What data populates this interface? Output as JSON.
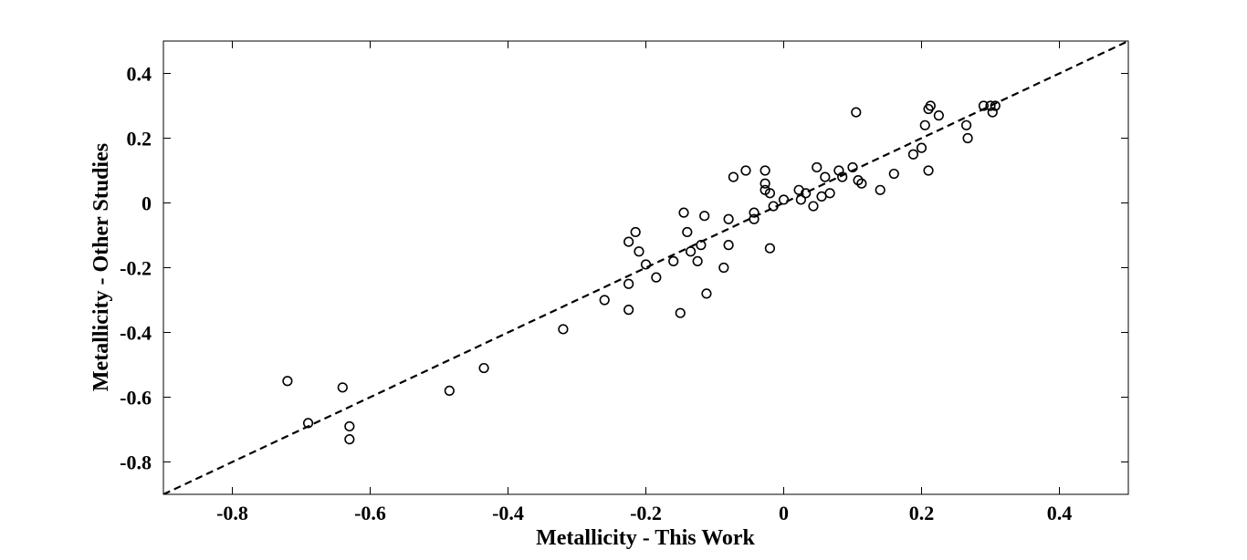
{
  "chart_data": {
    "type": "scatter",
    "title": "",
    "xlabel": "Metallicity - This Work",
    "ylabel": "Metallicity - Other Studies",
    "xlim": [
      -0.9,
      0.5
    ],
    "ylim": [
      -0.9,
      0.5
    ],
    "x_ticks": [
      -0.8,
      -0.6,
      -0.4,
      -0.2,
      0,
      0.2,
      0.4
    ],
    "x_tick_labels": [
      "-0.8",
      "-0.6",
      "-0.4",
      "-0.2",
      "0",
      "0.2",
      "0.4"
    ],
    "y_ticks": [
      0.4,
      0.2,
      0,
      -0.2,
      -0.4,
      -0.6,
      -0.8
    ],
    "y_tick_labels": [
      "0.4",
      "0.2",
      "0",
      "-0.2",
      "-0.4",
      "-0.6",
      "-0.8"
    ],
    "grid": false,
    "legend": "none",
    "fit_line": {
      "style": "dashed",
      "color": "#000000",
      "points": [
        [
          -0.9,
          -0.9
        ],
        [
          0.5,
          0.5
        ]
      ]
    },
    "marker": {
      "shape": "open-circle",
      "color": "#000000"
    },
    "points": [
      [
        -0.72,
        -0.55
      ],
      [
        -0.69,
        -0.68
      ],
      [
        -0.64,
        -0.57
      ],
      [
        -0.63,
        -0.69
      ],
      [
        -0.63,
        -0.73
      ],
      [
        -0.485,
        -0.58
      ],
      [
        -0.435,
        -0.51
      ],
      [
        -0.32,
        -0.39
      ],
      [
        -0.26,
        -0.3
      ],
      [
        -0.225,
        -0.12
      ],
      [
        -0.225,
        -0.25
      ],
      [
        -0.225,
        -0.33
      ],
      [
        -0.215,
        -0.09
      ],
      [
        -0.21,
        -0.15
      ],
      [
        -0.2,
        -0.19
      ],
      [
        -0.185,
        -0.23
      ],
      [
        -0.16,
        -0.18
      ],
      [
        -0.15,
        -0.34
      ],
      [
        -0.145,
        -0.03
      ],
      [
        -0.14,
        -0.09
      ],
      [
        -0.135,
        -0.15
      ],
      [
        -0.125,
        -0.18
      ],
      [
        -0.12,
        -0.13
      ],
      [
        -0.115,
        -0.04
      ],
      [
        -0.112,
        -0.28
      ],
      [
        -0.087,
        -0.2
      ],
      [
        -0.08,
        -0.05
      ],
      [
        -0.08,
        -0.13
      ],
      [
        -0.073,
        0.08
      ],
      [
        -0.055,
        0.1
      ],
      [
        -0.043,
        -0.03
      ],
      [
        -0.043,
        -0.05
      ],
      [
        -0.027,
        0.1
      ],
      [
        -0.027,
        0.06
      ],
      [
        -0.027,
        0.04
      ],
      [
        -0.02,
        0.03
      ],
      [
        -0.02,
        -0.14
      ],
      [
        -0.015,
        -0.01
      ],
      [
        0.0,
        0.01
      ],
      [
        0.022,
        0.04
      ],
      [
        0.025,
        0.01
      ],
      [
        0.032,
        0.03
      ],
      [
        0.043,
        -0.01
      ],
      [
        0.048,
        0.11
      ],
      [
        0.055,
        0.02
      ],
      [
        0.06,
        0.08
      ],
      [
        0.067,
        0.03
      ],
      [
        0.08,
        0.1
      ],
      [
        0.085,
        0.08
      ],
      [
        0.1,
        0.11
      ],
      [
        0.105,
        0.28
      ],
      [
        0.108,
        0.07
      ],
      [
        0.113,
        0.06
      ],
      [
        0.14,
        0.04
      ],
      [
        0.16,
        0.09
      ],
      [
        0.188,
        0.15
      ],
      [
        0.2,
        0.17
      ],
      [
        0.205,
        0.24
      ],
      [
        0.21,
        0.29
      ],
      [
        0.21,
        0.1
      ],
      [
        0.213,
        0.3
      ],
      [
        0.225,
        0.27
      ],
      [
        0.265,
        0.24
      ],
      [
        0.267,
        0.2
      ],
      [
        0.29,
        0.3
      ],
      [
        0.3,
        0.3
      ],
      [
        0.303,
        0.28
      ],
      [
        0.307,
        0.3
      ]
    ]
  }
}
